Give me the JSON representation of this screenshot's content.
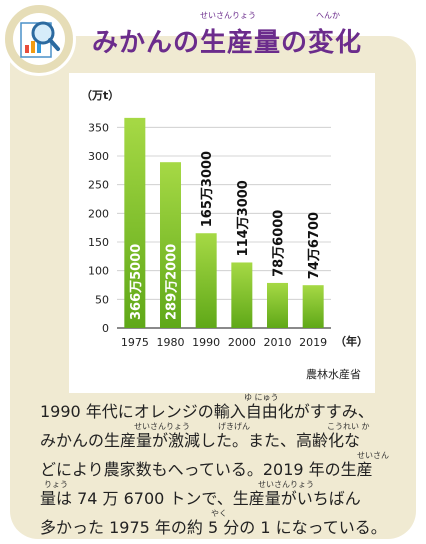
{
  "title": "みかんの生産量の変化",
  "title_ruby": {
    "seisanryou": "せいさんりょう",
    "henka": "へんか"
  },
  "chart_data": {
    "type": "bar",
    "categories": [
      "1975",
      "1980",
      "1990",
      "2000",
      "2010",
      "2019"
    ],
    "values": [
      366.5,
      289.2,
      165.3,
      114.3,
      78.6,
      74.67
    ],
    "value_labels": [
      "366万5000",
      "289万2000",
      "165万3000",
      "114万3000",
      "78万6000",
      "74万6700"
    ],
    "ylabel": "（万t）",
    "xlabel": "（年）",
    "yticks": [
      0,
      50,
      100,
      150,
      200,
      250,
      300,
      350
    ],
    "ylim": [
      0,
      375
    ],
    "source": "農林水産省",
    "bar_color_top": "#a6d945",
    "bar_color_bottom": "#5fa818"
  },
  "body": {
    "lines": [
      "1990 年代にオレンジの輸入自由化がすすみ、",
      "みかんの生産量が激減した。また、高齢化な",
      "どにより農家数もへっている。2019 年の生産",
      "量は 74 万 6700 トンで、生産量がいちばん",
      "多かった 1975 年の約 5 分の 1 になっている。"
    ],
    "ruby": [
      "ゆ にゅう",
      "せいさんりょう",
      "げきげん",
      "こうれい か",
      "せいさん",
      "りょう",
      "せいさんりょう",
      "やく"
    ]
  }
}
